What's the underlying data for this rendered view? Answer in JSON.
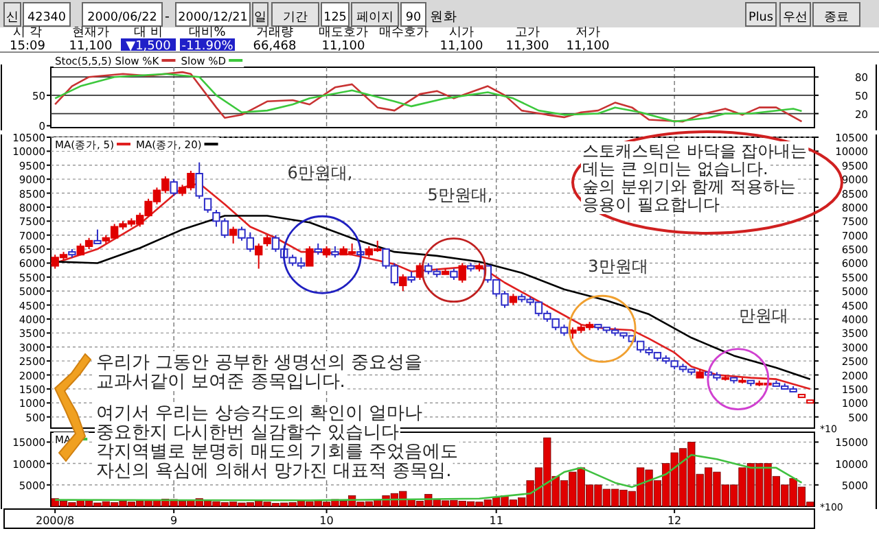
{
  "chart_data": [
    {
      "type": "other",
      "annotations": [
        "신",
        "42340",
        "2000/06/22",
        "-",
        "2000/12/21",
        "일",
        "기간",
        "125",
        "페이지",
        "90",
        "원화",
        "Plus",
        "우선",
        "종료",
        "시 각",
        "현재가",
        "대 비",
        "대비%",
        "거래량",
        "매도호가",
        "매수호가",
        "시가",
        "고가",
        "저가",
        "15:09",
        "11,100",
        "▼1,500",
        "-11.90%",
        "66,468",
        "11,100",
        "11,100",
        "11,300",
        "11,100"
      ]
    },
    {
      "type": "line",
      "categories": [
        "2000/8",
        null,
        null,
        null,
        null,
        null,
        null,
        null,
        null,
        null,
        null,
        null,
        null,
        null,
        "9",
        null,
        null,
        null,
        null,
        null,
        null,
        null,
        null,
        null,
        null,
        null,
        null,
        null,
        null,
        null,
        null,
        null,
        "10",
        null,
        null,
        null,
        null,
        null,
        null,
        null,
        null,
        null,
        null,
        null,
        null,
        null,
        null,
        null,
        null,
        null,
        null,
        null,
        "11",
        null,
        null,
        null,
        null,
        null,
        null,
        null,
        null,
        null,
        null,
        null,
        null,
        null,
        null,
        null,
        null,
        null,
        null,
        null,
        null,
        "12",
        null,
        null,
        null,
        null,
        null,
        null,
        null,
        null,
        null,
        null,
        null,
        null,
        null,
        null,
        null,
        null
      ],
      "series": [
        {
          "name": "Stoc(5,5,5) Slow %K",
          "color": "#c83232",
          "values": [
            35,
            null,
            65,
            null,
            80,
            null,
            null,
            null,
            85,
            null,
            null,
            82,
            null,
            null,
            null,
            88,
            85,
            null,
            null,
            30,
            13,
            null,
            18,
            null,
            null,
            40,
            null,
            null,
            42,
            null,
            35,
            null,
            null,
            63,
            null,
            68,
            null,
            null,
            30,
            null,
            25,
            null,
            null,
            52,
            null,
            57,
            null,
            45,
            null,
            null,
            null,
            65,
            null,
            50,
            null,
            25,
            null,
            null,
            18,
            null,
            14,
            null,
            22,
            null,
            25,
            null,
            38,
            null,
            30,
            null,
            10,
            null,
            null,
            null,
            7,
            null,
            18,
            null,
            null,
            28,
            null,
            18,
            null,
            30,
            null,
            30,
            null,
            null,
            7,
            null
          ]
        },
        {
          "name": "Slow %D",
          "color": "#3cc83c",
          "values": [
            45,
            null,
            null,
            65,
            null,
            null,
            null,
            80,
            null,
            null,
            null,
            null,
            null,
            85,
            null,
            null,
            null,
            80,
            null,
            50,
            null,
            null,
            22,
            null,
            null,
            25,
            null,
            null,
            35,
            null,
            45,
            null,
            null,
            null,
            null,
            58,
            null,
            null,
            null,
            null,
            40,
            null,
            32,
            null,
            null,
            null,
            45,
            null,
            null,
            null,
            null,
            55,
            null,
            null,
            45,
            null,
            null,
            25,
            null,
            null,
            18,
            null,
            null,
            null,
            20,
            null,
            30,
            null,
            null,
            22,
            null,
            null,
            null,
            7,
            null,
            null,
            null,
            13,
            null,
            20,
            null,
            null,
            20,
            null,
            null,
            null,
            null,
            28,
            24,
            null
          ]
        }
      ],
      "ylim": [
        -3,
        96
      ],
      "yticks": [
        0,
        50
      ],
      "y2lim": [
        -3,
        96
      ],
      "y2ticks": [
        20,
        50,
        80
      ],
      "grid": true,
      "legend": "top left",
      "tick_labels": "y"
    },
    {
      "type": "candlestick",
      "categories": [
        "2000/8",
        null,
        null,
        null,
        null,
        null,
        null,
        null,
        null,
        null,
        null,
        null,
        null,
        null,
        "9",
        null,
        null,
        null,
        null,
        null,
        null,
        null,
        null,
        null,
        null,
        null,
        null,
        null,
        null,
        null,
        null,
        null,
        "10",
        null,
        null,
        null,
        null,
        null,
        null,
        null,
        null,
        null,
        null,
        null,
        null,
        null,
        null,
        null,
        null,
        null,
        null,
        null,
        "11",
        null,
        null,
        null,
        null,
        null,
        null,
        null,
        null,
        null,
        null,
        null,
        null,
        null,
        null,
        null,
        null,
        null,
        null,
        null,
        null,
        "12",
        null,
        null,
        null,
        null,
        null,
        null,
        null,
        null,
        null,
        null,
        null,
        null,
        null,
        null,
        null,
        null
      ],
      "ohlc": [
        [
          5900,
          6300,
          5800,
          6200
        ],
        [
          6200,
          6400,
          6100,
          6300
        ],
        [
          6400,
          6500,
          6200,
          6300
        ],
        [
          6300,
          6700,
          6300,
          6600
        ],
        [
          6600,
          6900,
          6500,
          6800
        ],
        [
          6800,
          7200,
          6700,
          6700
        ],
        [
          6800,
          7000,
          6700,
          6900
        ],
        [
          6900,
          7400,
          6900,
          7300
        ],
        [
          7300,
          7500,
          7200,
          7400
        ],
        [
          7400,
          7600,
          7300,
          7500
        ],
        [
          7400,
          7800,
          7300,
          7700
        ],
        [
          7700,
          8300,
          7700,
          8200
        ],
        [
          8200,
          8700,
          8100,
          8600
        ],
        [
          8600,
          9100,
          8500,
          9000
        ],
        [
          8900,
          9000,
          8400,
          8500
        ],
        [
          8500,
          8800,
          8400,
          8700
        ],
        [
          8700,
          9300,
          8600,
          9200
        ],
        [
          9200,
          9600,
          8300,
          8400
        ],
        [
          8300,
          8300,
          7800,
          7900
        ],
        [
          7800,
          7900,
          7300,
          7500
        ],
        [
          7500,
          7600,
          6900,
          7000
        ],
        [
          7000,
          7300,
          6700,
          7200
        ],
        [
          7200,
          7300,
          6800,
          6900
        ],
        [
          6900,
          7100,
          6400,
          6500
        ],
        [
          6300,
          6700,
          5800,
          6600
        ],
        [
          6700,
          7000,
          6600,
          6900
        ],
        [
          6900,
          7000,
          6400,
          6500
        ],
        [
          6500,
          6600,
          6100,
          6200
        ],
        [
          6200,
          6300,
          5900,
          6000
        ],
        [
          6000,
          6200,
          5800,
          5900
        ],
        [
          5900,
          6600,
          5900,
          6500
        ],
        [
          6500,
          6700,
          6300,
          6400
        ],
        [
          6300,
          6600,
          6200,
          6500
        ],
        [
          6400,
          6600,
          6200,
          6300
        ],
        [
          6300,
          6600,
          6300,
          6500
        ],
        [
          6400,
          6700,
          6300,
          6400
        ],
        [
          6400,
          6500,
          6200,
          6300
        ],
        [
          6300,
          6600,
          6200,
          6500
        ],
        [
          6500,
          6800,
          6400,
          6500
        ],
        [
          6500,
          6500,
          5800,
          5900
        ],
        [
          5900,
          6000,
          5200,
          5300
        ],
        [
          5200,
          5600,
          5000,
          5500
        ],
        [
          5500,
          5700,
          5300,
          5400
        ],
        [
          5500,
          6000,
          5400,
          5900
        ],
        [
          5900,
          6000,
          5600,
          5700
        ],
        [
          5700,
          5800,
          5500,
          5600
        ],
        [
          5600,
          5800,
          5600,
          5700
        ],
        [
          5700,
          5800,
          5400,
          5500
        ],
        [
          5400,
          6000,
          5300,
          5900
        ],
        [
          5900,
          6000,
          5700,
          5800
        ],
        [
          5800,
          6000,
          5700,
          5900
        ],
        [
          5900,
          5900,
          5300,
          5400
        ],
        [
          5400,
          5400,
          4800,
          4900
        ],
        [
          4900,
          5000,
          4400,
          4500
        ],
        [
          4600,
          4900,
          4500,
          4800
        ],
        [
          4800,
          4900,
          4600,
          4700
        ],
        [
          4700,
          4800,
          4500,
          4600
        ],
        [
          4600,
          4600,
          4100,
          4200
        ],
        [
          4200,
          4300,
          3900,
          4000
        ],
        [
          4000,
          4000,
          3600,
          3700
        ],
        [
          3700,
          3800,
          3400,
          3500
        ],
        [
          3500,
          3700,
          3300,
          3600
        ],
        [
          3600,
          3800,
          3500,
          3700
        ],
        [
          3700,
          3900,
          3600,
          3800
        ],
        [
          3800,
          3800,
          3600,
          3700
        ],
        [
          3700,
          3700,
          3500,
          3600
        ],
        [
          3600,
          3700,
          3400,
          3500
        ],
        [
          3500,
          3500,
          3300,
          3400
        ],
        [
          3400,
          3400,
          3100,
          3200
        ],
        [
          3200,
          3200,
          2800,
          2900
        ],
        [
          2900,
          3000,
          2700,
          2800
        ],
        [
          2800,
          2800,
          2500,
          2600
        ],
        [
          2600,
          2700,
          2400,
          2500
        ],
        [
          2500,
          2500,
          2200,
          2300
        ],
        [
          2300,
          2400,
          2100,
          2200
        ],
        [
          2200,
          2200,
          2000,
          2100
        ],
        [
          1900,
          2200,
          1900,
          2100
        ],
        [
          2100,
          2100,
          1900,
          2000
        ],
        [
          2000,
          2100,
          1800,
          1900
        ],
        [
          1900,
          2000,
          1800,
          1900
        ],
        [
          1900,
          1900,
          1700,
          1800
        ],
        [
          1800,
          1900,
          1700,
          1800
        ],
        [
          1800,
          1800,
          1600,
          1700
        ],
        [
          1700,
          1800,
          1600,
          1700
        ],
        [
          1700,
          1800,
          1600,
          1700
        ],
        [
          1700,
          1800,
          1600,
          1600
        ],
        [
          1600,
          1700,
          1500,
          1500
        ],
        [
          1500,
          1600,
          1400,
          1400
        ],
        [
          1300,
          1300,
          1200,
          1200
        ],
        [
          1100,
          1100,
          1000,
          1000
        ]
      ],
      "colors": [
        "#e00000",
        "#e00000",
        "#2c2cc8",
        "#e00000",
        "#e00000",
        "#2c2cc8",
        "#e00000",
        "#e00000",
        "#e00000",
        "#e00000",
        "#e00000",
        "#e00000",
        "#e00000",
        "#e00000",
        "#2c2cc8",
        "#e00000",
        "#e00000",
        "#2c2cc8",
        "#2c2cc8",
        "#2c2cc8",
        "#2c2cc8",
        "#e00000",
        "#2c2cc8",
        "#2c2cc8",
        "#e00000",
        "#e00000",
        "#2c2cc8",
        "#2c2cc8",
        "#2c2cc8",
        "#2c2cc8",
        "#e00000",
        "#2c2cc8",
        "#e00000",
        "#2c2cc8",
        "#e00000",
        "#e00000",
        "#2c2cc8",
        "#e00000",
        "#e00000",
        "#2c2cc8",
        "#2c2cc8",
        "#e00000",
        "#2c2cc8",
        "#e00000",
        "#2c2cc8",
        "#2c2cc8",
        "#e00000",
        "#2c2cc8",
        "#e00000",
        "#2c2cc8",
        "#e00000",
        "#2c2cc8",
        "#2c2cc8",
        "#2c2cc8",
        "#e00000",
        "#2c2cc8",
        "#2c2cc8",
        "#2c2cc8",
        "#2c2cc8",
        "#2c2cc8",
        "#2c2cc8",
        "#e00000",
        "#e00000",
        "#e00000",
        "#2c2cc8",
        "#2c2cc8",
        "#2c2cc8",
        "#2c2cc8",
        "#2c2cc8",
        "#2c2cc8",
        "#2c2cc8",
        "#2c2cc8",
        "#2c2cc8",
        "#2c2cc8",
        "#2c2cc8",
        "#2c2cc8",
        "#e00000",
        "#2c2cc8",
        "#2c2cc8",
        "#e00000",
        "#2c2cc8",
        "#e00000",
        "#2c2cc8",
        "#e00000",
        "#e00000",
        "#2c2cc8",
        "#2c2cc8",
        "#2c2cc8",
        "#e00000",
        "#e00000"
      ],
      "series": [
        {
          "name": "MA(종가, 5)",
          "type": "line",
          "color": "#e02020",
          "values": [
            6000,
            null,
            null,
            null,
            null,
            6500,
            null,
            null,
            null,
            null,
            7400,
            null,
            null,
            null,
            null,
            8700,
            null,
            8850,
            null,
            null,
            8100,
            null,
            null,
            7300,
            null,
            null,
            6900,
            null,
            null,
            6400,
            null,
            6400,
            null,
            null,
            null,
            6300,
            null,
            null,
            null,
            null,
            5960,
            null,
            5700,
            null,
            null,
            null,
            5800,
            null,
            null,
            null,
            5900,
            null,
            null,
            5300,
            null,
            null,
            4800,
            null,
            null,
            4300,
            null,
            null,
            3800,
            null,
            null,
            3650,
            null,
            null,
            3600,
            null,
            3300,
            null,
            null,
            2800,
            null,
            2300,
            null,
            null,
            2000,
            null,
            null,
            null,
            1900,
            null,
            null,
            1850,
            null,
            null,
            null,
            1500
          ]
        },
        {
          "name": "MA(종가, 20)",
          "type": "line",
          "color": "#000000",
          "values": [
            6050,
            null,
            null,
            null,
            null,
            6000,
            null,
            null,
            null,
            null,
            6540,
            null,
            null,
            null,
            null,
            7200,
            null,
            null,
            null,
            null,
            7690,
            null,
            null,
            null,
            null,
            7690,
            null,
            null,
            null,
            null,
            7450,
            null,
            null,
            null,
            null,
            6890,
            null,
            null,
            null,
            null,
            6400,
            null,
            null,
            null,
            null,
            6260,
            null,
            null,
            null,
            null,
            6050,
            null,
            null,
            null,
            null,
            5650,
            null,
            null,
            null,
            null,
            5060,
            null,
            null,
            null,
            null,
            4660,
            null,
            null,
            null,
            null,
            4170,
            null,
            null,
            null,
            null,
            3330,
            null,
            null,
            null,
            null,
            2690,
            null,
            null,
            null,
            null,
            2260,
            null,
            null,
            null,
            1850
          ]
        }
      ],
      "ylim": [
        100,
        10500
      ],
      "yticks": [
        500,
        1000,
        1500,
        2000,
        2500,
        3000,
        3500,
        4000,
        4500,
        5000,
        5500,
        6000,
        6500,
        7000,
        7500,
        8000,
        8500,
        9000,
        9500,
        10000,
        10500
      ],
      "y2lim": [
        100,
        10500
      ],
      "y2ticks": [
        500,
        1000,
        1500,
        2000,
        2500,
        3000,
        3500,
        4000,
        4500,
        5000,
        5500,
        6000,
        6500,
        7000,
        7500,
        8000,
        8500,
        9000,
        9500,
        10000,
        10500
      ],
      "grid": true,
      "legend": "top left",
      "tick_labels": "y",
      "annotations": [
        "6만원대,",
        "5만원대,",
        "3만원대",
        "만원대",
        "스토캐스틱은 바닥을 잡아내는\n데는 큰 의미는 없습니다.\n숲의 분위기와 함께 적용하는\n응용이 필요합니다",
        "우리가 그동안 공부한 생명선의 중요성을\n교과서같이 보여준 종목입니다.",
        "여기서 우리는 상승각도의 확인이 얼마나\n중요한지 다시한번 실감할수 있습니다\n각지역별로 분명히 매도의 기회를 주었음에도\n자신의 욕심에 의해서 망가진 대표적 종목임.",
        "*10"
      ]
    },
    {
      "type": "bar",
      "categories": [
        "2000/8",
        null,
        null,
        null,
        null,
        null,
        null,
        null,
        null,
        null,
        null,
        null,
        null,
        null,
        "9",
        null,
        null,
        null,
        null,
        null,
        null,
        null,
        null,
        null,
        null,
        null,
        null,
        null,
        null,
        null,
        null,
        null,
        "10",
        null,
        null,
        null,
        null,
        null,
        null,
        null,
        null,
        null,
        null,
        null,
        null,
        null,
        null,
        null,
        null,
        null,
        null,
        null,
        "11",
        null,
        null,
        null,
        null,
        null,
        null,
        null,
        null,
        null,
        null,
        null,
        null,
        null,
        null,
        null,
        null,
        null,
        null,
        null,
        null,
        "12",
        null,
        null,
        null,
        null,
        null,
        null,
        null,
        null,
        null,
        null,
        null,
        null,
        null,
        null,
        null,
        null
      ],
      "series": [
        {
          "type": "bar",
          "color": "#e00000",
          "values": [
            1800,
            1200,
            900,
            1500,
            1300,
            800,
            1100,
            900,
            1200,
            1000,
            1300,
            1500,
            1400,
            1700,
            1600,
            1200,
            1500,
            1800,
            1300,
            1100,
            900,
            1000,
            800,
            900,
            1200,
            1000,
            700,
            800,
            900,
            1300,
            1100,
            1400,
            1000,
            1600,
            1200,
            2500,
            1000,
            1100,
            1400,
            2500,
            3000,
            3500,
            1500,
            1200,
            2800,
            1500,
            1300,
            1400,
            1200,
            1100,
            1000,
            1500,
            2000,
            2500,
            1500,
            2000,
            6000,
            9000,
            16000,
            7000,
            6000,
            8000,
            9000,
            5000,
            5000,
            4000,
            4000,
            3800,
            3500,
            9000,
            8500,
            6000,
            10000,
            12500,
            13500,
            15000,
            7500,
            9000,
            8000,
            5000,
            5000,
            9000,
            10000,
            10000,
            10000,
            7000,
            5000,
            6500,
            4500,
            1000
          ]
        },
        {
          "name": "MA",
          "type": "line",
          "color": "#40c040",
          "values": [
            1500,
            null,
            null,
            null,
            null,
            null,
            null,
            null,
            null,
            null,
            null,
            null,
            null,
            null,
            null,
            null,
            null,
            null,
            null,
            null,
            null,
            null,
            null,
            null,
            null,
            null,
            null,
            null,
            null,
            null,
            1400,
            null,
            null,
            null,
            null,
            null,
            null,
            null,
            null,
            null,
            null,
            null,
            null,
            null,
            null,
            null,
            null,
            null,
            null,
            null,
            1800,
            null,
            null,
            null,
            null,
            null,
            3000,
            null,
            null,
            null,
            8000,
            null,
            9000,
            null,
            null,
            null,
            5500,
            null,
            4500,
            null,
            null,
            null,
            7500,
            null,
            null,
            12000,
            null,
            null,
            11000,
            null,
            null,
            null,
            9000,
            null,
            null,
            9000,
            null,
            null,
            5500,
            null
          ]
        }
      ],
      "ylim": [
        0,
        17300
      ],
      "yticks": [
        5000,
        10000,
        15000
      ],
      "y2lim": [
        0,
        17300
      ],
      "y2ticks": [
        5000,
        10000,
        15000
      ],
      "grid": true,
      "legend": "top left",
      "annotations": [
        "*100"
      ]
    }
  ]
}
